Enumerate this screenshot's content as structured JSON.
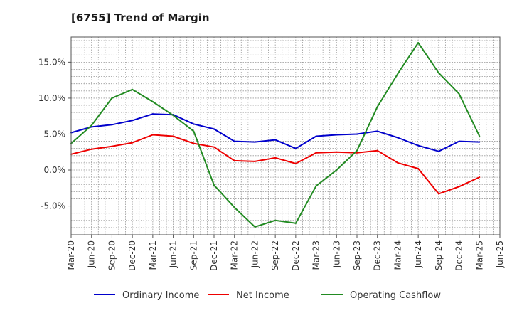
{
  "chart_data": {
    "type": "line",
    "title": "[6755]  Trend of Margin",
    "xlabel": "",
    "ylabel": "",
    "categories": [
      "Mar-20",
      "Jun-20",
      "Sep-20",
      "Dec-20",
      "Mar-21",
      "Jun-21",
      "Sep-21",
      "Dec-21",
      "Mar-22",
      "Jun-22",
      "Sep-22",
      "Dec-22",
      "Mar-23",
      "Jun-23",
      "Sep-23",
      "Dec-23",
      "Mar-24",
      "Jun-24",
      "Sep-24",
      "Dec-24",
      "Mar-25",
      "Jun-25"
    ],
    "ylim": [
      -9,
      18.5
    ],
    "yticks": [
      -5,
      0,
      5,
      10,
      15
    ],
    "ytick_labels": [
      "-5.0%",
      "0.0%",
      "5.0%",
      "10.0%",
      "15.0%"
    ],
    "grid": true,
    "legend_position": "bottom",
    "series": [
      {
        "name": "Ordinary Income",
        "color": "#0000cc",
        "values": [
          5.2,
          6.0,
          6.3,
          6.9,
          7.8,
          7.7,
          6.4,
          5.7,
          4.0,
          3.9,
          4.2,
          3.0,
          4.7,
          4.9,
          5.0,
          5.4,
          4.5,
          3.4,
          2.6,
          4.0,
          3.9,
          null
        ]
      },
      {
        "name": "Net Income",
        "color": "#ee0000",
        "values": [
          2.2,
          2.9,
          3.3,
          3.8,
          4.9,
          4.7,
          3.7,
          3.2,
          1.3,
          1.2,
          1.7,
          0.9,
          2.4,
          2.5,
          2.4,
          2.7,
          1.0,
          0.2,
          -3.3,
          -2.3,
          -1.0,
          null
        ]
      },
      {
        "name": "Operating Cashflow",
        "color": "#228b22",
        "values": [
          3.7,
          6.2,
          10.0,
          11.2,
          9.5,
          7.6,
          5.4,
          -2.1,
          -5.2,
          -7.9,
          -7.0,
          -7.4,
          -2.2,
          0.0,
          2.7,
          8.8,
          13.4,
          17.7,
          13.5,
          10.6,
          4.7,
          null
        ]
      }
    ]
  }
}
